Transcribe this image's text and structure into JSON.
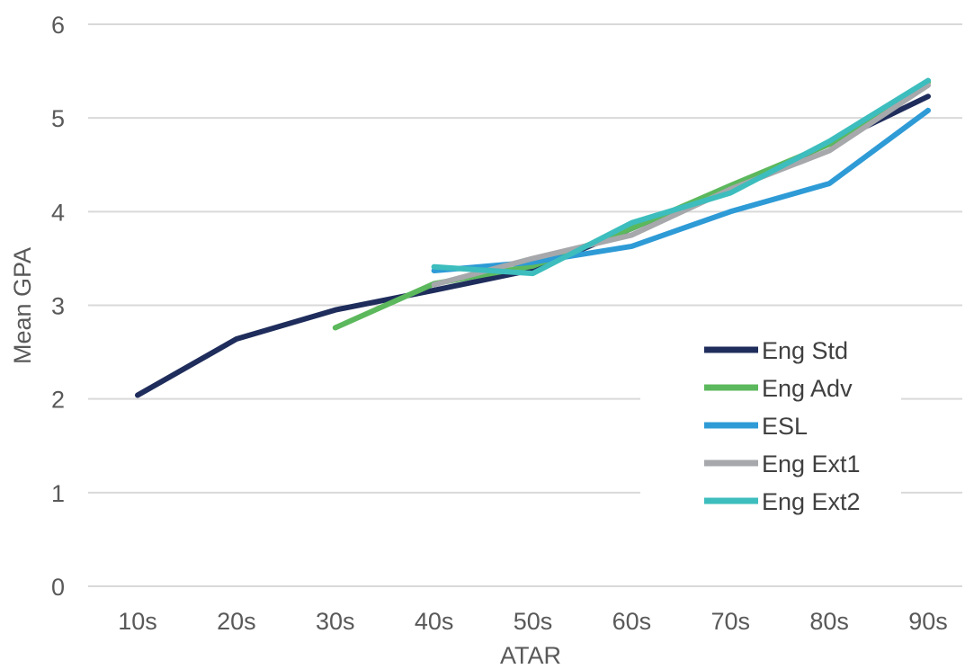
{
  "chart_data": {
    "type": "line",
    "title": "",
    "xlabel": "ATAR",
    "ylabel": "Mean GPA",
    "categories": [
      "10s",
      "20s",
      "30s",
      "40s",
      "50s",
      "60s",
      "70s",
      "80s",
      "90s"
    ],
    "ylim": [
      0,
      6
    ],
    "yticks": [
      0,
      1,
      2,
      3,
      4,
      5,
      6
    ],
    "grid": true,
    "legend_position": "right",
    "series": [
      {
        "name": "Eng Std",
        "color": "#1f2d5c",
        "values": [
          2.04,
          2.64,
          2.95,
          3.16,
          3.38,
          3.82,
          4.27,
          4.72,
          5.23
        ]
      },
      {
        "name": "Eng Adv",
        "color": "#5cb85c",
        "values": [
          null,
          null,
          2.76,
          3.23,
          3.42,
          3.82,
          4.28,
          4.72,
          5.38
        ]
      },
      {
        "name": "ESL",
        "color": "#2e9bd6",
        "values": [
          null,
          null,
          null,
          3.37,
          3.46,
          3.63,
          4.0,
          4.3,
          5.08
        ]
      },
      {
        "name": "Eng Ext1",
        "color": "#a6a8ab",
        "values": [
          null,
          null,
          null,
          3.22,
          3.5,
          3.75,
          4.24,
          4.65,
          5.35
        ]
      },
      {
        "name": "Eng Ext2",
        "color": "#3dbdbd",
        "values": [
          null,
          null,
          null,
          3.41,
          3.34,
          3.88,
          4.2,
          4.75,
          5.4
        ]
      }
    ]
  }
}
